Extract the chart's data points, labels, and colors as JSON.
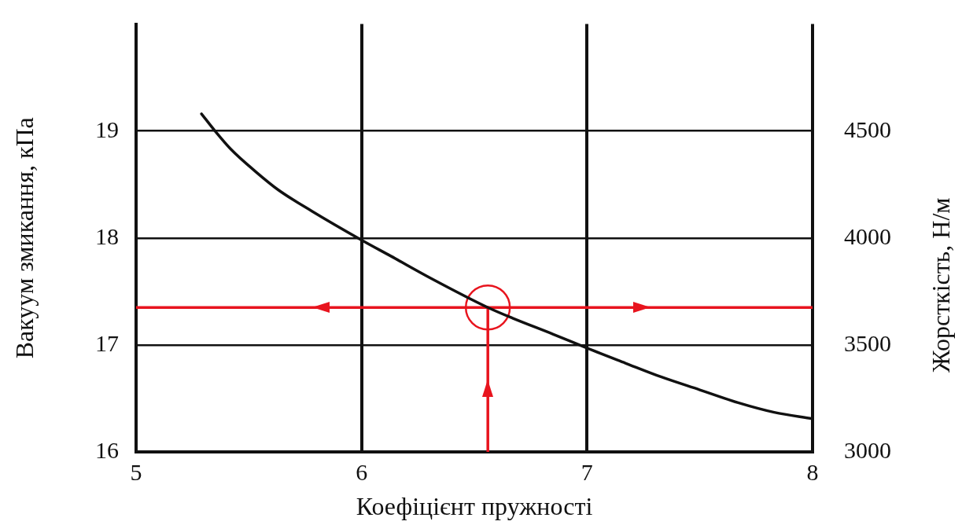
{
  "chart_data": {
    "type": "line",
    "xlabel": "Коефіцієнт пружності",
    "ylabel": "Вакуум змикання, кПа",
    "y2label": "Жорсткість, Н/м",
    "xlim": [
      5,
      8
    ],
    "xticks": [
      5,
      6,
      7,
      8
    ],
    "ylim": [
      16,
      20
    ],
    "yticks": [
      16,
      17,
      18,
      19
    ],
    "y2lim": [
      3000,
      5000
    ],
    "y2ticks": [
      3000,
      3500,
      4000,
      4500
    ],
    "grid": true,
    "marker": "none",
    "line_style": "solid",
    "series": [
      {
        "color": "#111111",
        "x": [
          5.29,
          5.35,
          5.42,
          5.53,
          5.63,
          5.78,
          6.0,
          6.13,
          6.31,
          6.56,
          6.67,
          6.85,
          7.0,
          7.17,
          7.33,
          7.5,
          7.67,
          7.83,
          8.0
        ],
        "values": [
          19.16,
          19.0,
          18.83,
          18.62,
          18.45,
          18.25,
          17.98,
          17.83,
          17.62,
          17.35,
          17.25,
          17.1,
          16.97,
          16.83,
          16.7,
          16.58,
          16.46,
          16.37,
          16.31
        ]
      },
      {
        "color": "#e8141e",
        "x": [
          6.56,
          6.56
        ],
        "values": [
          16,
          17.35
        ]
      },
      {
        "color": "#e8141e",
        "x": [
          6.56,
          5
        ],
        "values": [
          17.35,
          17.35
        ]
      },
      {
        "color": "#e8141e",
        "x": [
          6.56,
          8
        ],
        "values": [
          17.35,
          17.35
        ]
      },
      {
        "type": "scatter",
        "color": "#e8141e",
        "marker": "circle",
        "x": [
          6.56
        ],
        "values": [
          17.35
        ]
      }
    ]
  }
}
